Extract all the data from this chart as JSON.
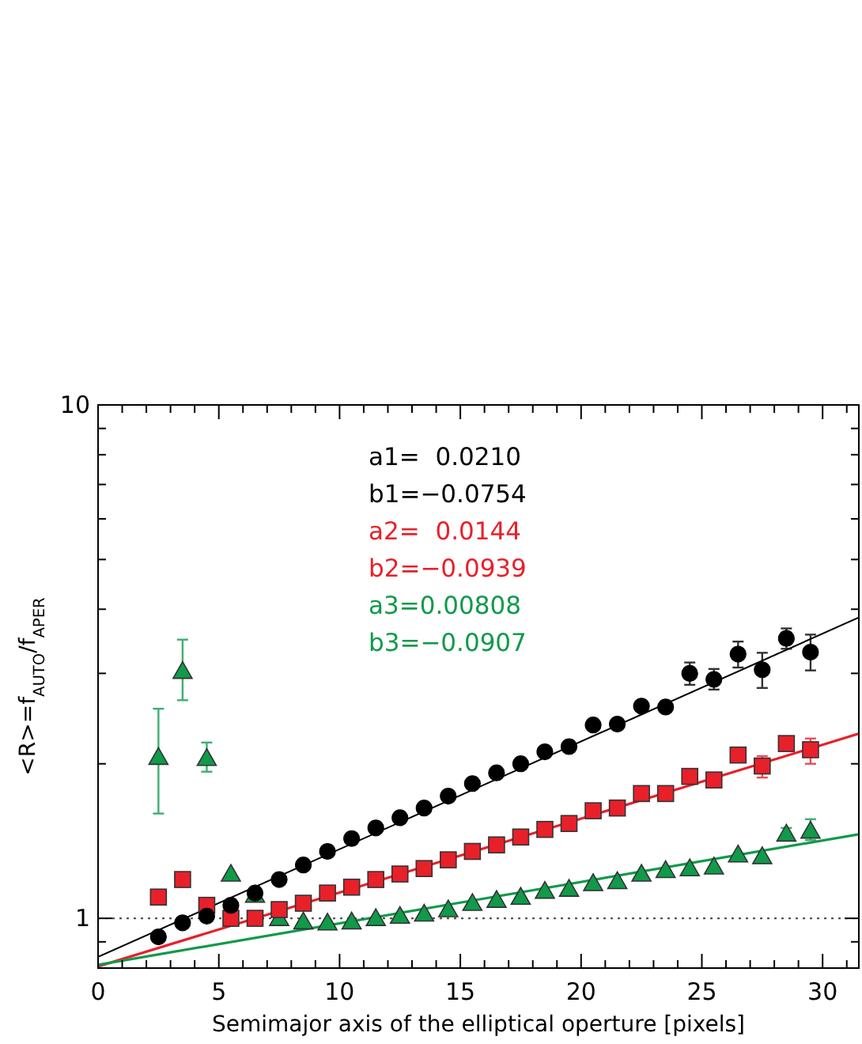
{
  "chart_data": {
    "type": "scatter",
    "xlabel": "Semimajor axis of the elliptical operture [pixels]",
    "ylabel": "<R>=f$_{AUTO}$/f$_{APER}$",
    "xlim": [
      0,
      31.5
    ],
    "ylim": [
      0.8,
      10
    ],
    "log": "y",
    "xticks": [
      0,
      {
        "value": 1,
        "label": null
      },
      {
        "value": 2,
        "label": null
      },
      {
        "value": 3,
        "label": null
      },
      {
        "value": 4,
        "label": null
      },
      5,
      {
        "value": 6,
        "label": null
      },
      {
        "value": 7,
        "label": null
      },
      {
        "value": 8,
        "label": null
      },
      {
        "value": 9,
        "label": null
      },
      10,
      {
        "value": 11,
        "label": null
      },
      {
        "value": 12,
        "label": null
      },
      {
        "value": 13,
        "label": null
      },
      {
        "value": 14,
        "label": null
      },
      15,
      {
        "value": 16,
        "label": null
      },
      {
        "value": 17,
        "label": null
      },
      {
        "value": 18,
        "label": null
      },
      {
        "value": 19,
        "label": null
      },
      20,
      {
        "value": 21,
        "label": null
      },
      {
        "value": 22,
        "label": null
      },
      {
        "value": 23,
        "label": null
      },
      {
        "value": 24,
        "label": null
      },
      25,
      {
        "value": 26,
        "label": null
      },
      {
        "value": 27,
        "label": null
      },
      {
        "value": 28,
        "label": null
      },
      {
        "value": 29,
        "label": null
      },
      30,
      {
        "value": 31,
        "label": null
      }
    ],
    "yticks": [
      {
        "value": 0.9,
        "label": null
      },
      1,
      {
        "value": 2,
        "label": null
      },
      {
        "value": 3,
        "label": null
      },
      {
        "value": 4,
        "label": null
      },
      {
        "value": 5,
        "label": null
      },
      {
        "value": 6,
        "label": null
      },
      {
        "value": 7,
        "label": null
      },
      {
        "value": 8,
        "label": null
      },
      {
        "value": 9,
        "label": null
      },
      10
    ],
    "x": [
      2.5,
      3.5,
      4.5,
      5.5,
      6.5,
      7.5,
      8.5,
      9.5,
      10.5,
      11.5,
      12.5,
      13.5,
      14.5,
      15.5,
      16.5,
      17.5,
      18.5,
      19.5,
      20.5,
      21.5,
      22.5,
      23.5,
      24.5,
      25.5,
      26.5,
      27.5,
      28.5,
      29.5
    ],
    "series": [
      {
        "marker": "circle",
        "color": "#000000",
        "values": [
          0.92,
          0.98,
          1.01,
          1.06,
          1.12,
          1.19,
          1.27,
          1.35,
          1.43,
          1.5,
          1.57,
          1.64,
          1.73,
          1.83,
          1.92,
          2.0,
          2.11,
          2.16,
          2.38,
          2.39,
          2.59,
          2.58,
          3.0,
          2.92,
          3.27,
          3.05,
          3.51,
          3.3
        ],
        "errors": [
          null,
          null,
          null,
          null,
          null,
          null,
          null,
          null,
          null,
          null,
          null,
          null,
          null,
          null,
          null,
          null,
          null,
          null,
          null,
          null,
          null,
          null,
          [
            2.85,
            3.15
          ],
          [
            2.79,
            3.06
          ],
          [
            3.08,
            3.46
          ],
          [
            2.81,
            3.29
          ],
          [
            3.35,
            3.67
          ],
          [
            3.04,
            3.57
          ]
        ]
      },
      {
        "marker": "square",
        "color": "#e8202a",
        "values": [
          1.1,
          1.19,
          1.06,
          1.0,
          1.0,
          1.04,
          1.07,
          1.12,
          1.15,
          1.19,
          1.22,
          1.25,
          1.3,
          1.35,
          1.39,
          1.44,
          1.49,
          1.53,
          1.62,
          1.64,
          1.75,
          1.75,
          1.89,
          1.86,
          2.08,
          1.98,
          2.19,
          2.13
        ],
        "errors": [
          null,
          null,
          null,
          null,
          null,
          null,
          null,
          null,
          null,
          null,
          null,
          null,
          null,
          null,
          null,
          null,
          null,
          null,
          null,
          null,
          null,
          null,
          null,
          null,
          null,
          [
            1.88,
            2.07
          ],
          null,
          [
            2.0,
            2.24
          ]
        ]
      },
      {
        "marker": "triangle",
        "color": "#109a4a",
        "values": [
          2.06,
          3.03,
          2.05,
          1.22,
          1.11,
          1.0,
          0.985,
          0.98,
          0.985,
          1.0,
          1.01,
          1.02,
          1.04,
          1.07,
          1.085,
          1.1,
          1.13,
          1.14,
          1.17,
          1.18,
          1.22,
          1.24,
          1.25,
          1.26,
          1.33,
          1.32,
          1.46,
          1.48
        ],
        "errors": [
          [
            1.6,
            2.56
          ],
          [
            2.66,
            3.49
          ],
          [
            1.93,
            2.2
          ],
          null,
          null,
          null,
          null,
          null,
          null,
          null,
          null,
          null,
          null,
          null,
          null,
          null,
          null,
          null,
          null,
          null,
          null,
          null,
          null,
          null,
          null,
          null,
          [
            1.42,
            1.5
          ],
          [
            1.42,
            1.56
          ]
        ]
      },
      {
        "type": "line",
        "marker": "none",
        "line_style": "solid",
        "color": "#000000",
        "x": [
          0,
          15,
          31.5
        ],
        "values": [
          0.841,
          1.736,
          3.855
        ]
      },
      {
        "type": "line",
        "marker": "none",
        "line_style": "solid",
        "color": "#e8202a",
        "x": [
          0,
          15,
          31.5
        ],
        "values": [
          0.806,
          1.325,
          2.289
        ]
      },
      {
        "type": "line",
        "marker": "none",
        "line_style": "solid",
        "color": "#109a4a",
        "x": [
          0,
          15,
          31.5
        ],
        "values": [
          0.812,
          1.073,
          1.458
        ]
      }
    ],
    "ref_lines": [
      {
        "axis": "y",
        "value": 1,
        "label": null,
        "color": "#555555",
        "line_style": "dotted"
      }
    ],
    "annotations": [
      "a1=  0.0210",
      "b1=−0.0754",
      "a2=  0.0144",
      "b2=−0.0939",
      "a3=0.00808",
      "b3=−0.0907"
    ]
  }
}
